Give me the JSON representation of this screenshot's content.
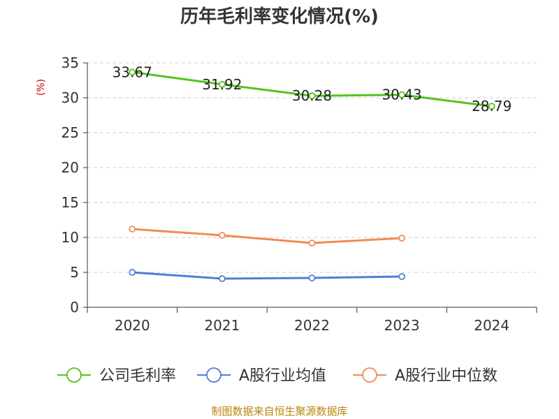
{
  "colors": {
    "gross_margin": "#52c41a",
    "industry_mean": "#4f7ed6",
    "industry_median": "#f28b54",
    "grid": "#cccccc",
    "axis": "#333333",
    "unit": "#cc0000",
    "source": "#b8860b"
  },
  "chart_data": {
    "type": "line",
    "title": "历年毛利率变化情况(%)",
    "ylabel": "(%)",
    "xlabel": "",
    "categories": [
      "2020",
      "2021",
      "2022",
      "2023",
      "2024"
    ],
    "ylim": [
      0,
      35
    ],
    "yticks": [
      0,
      5,
      10,
      15,
      20,
      25,
      30,
      35
    ],
    "grid": "horizontal dashed",
    "legend_position": "bottom",
    "series": [
      {
        "name": "公司毛利率",
        "values": [
          33.67,
          31.92,
          30.28,
          30.43,
          28.79
        ],
        "labels": [
          "33.67",
          "31.92",
          "30.28",
          "30.43",
          "28.79"
        ]
      },
      {
        "name": "A股行业均值",
        "values": [
          5.0,
          4.1,
          4.2,
          4.4,
          null
        ]
      },
      {
        "name": "A股行业中位数",
        "values": [
          11.2,
          10.3,
          9.2,
          9.9,
          null
        ]
      }
    ]
  },
  "source_text": "制图数据来自恒生聚源数据库"
}
